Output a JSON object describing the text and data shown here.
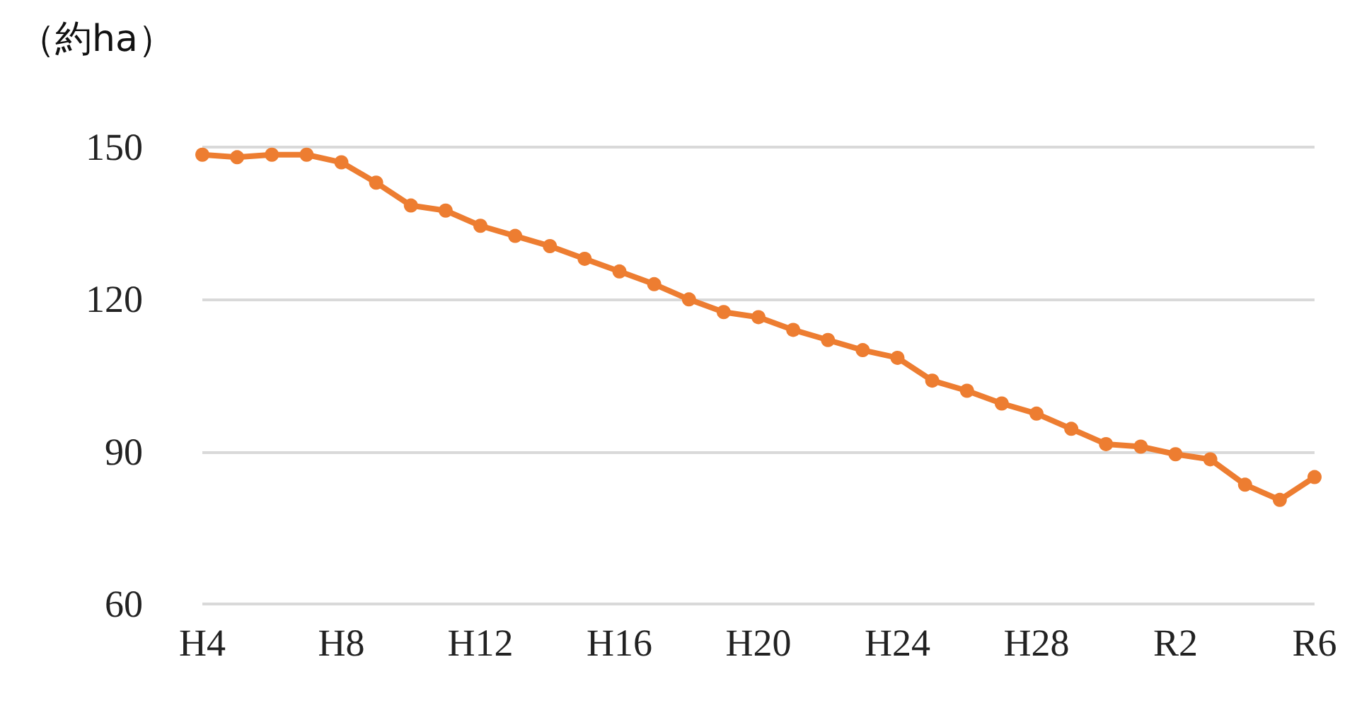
{
  "chart_data": {
    "type": "line",
    "ylabel": "（約ha）",
    "categories": [
      "H4",
      null,
      null,
      null,
      "H8",
      null,
      null,
      null,
      "H12",
      null,
      null,
      null,
      "H16",
      null,
      null,
      null,
      "H20",
      null,
      null,
      null,
      "H24",
      null,
      null,
      null,
      "H28",
      null,
      null,
      null,
      "R2",
      null,
      null,
      null,
      "R6"
    ],
    "series": [
      {
        "color": "#ed7d31",
        "values": [
          148.5,
          148,
          148.5,
          148.5,
          147,
          143,
          138.5,
          137.5,
          134.5,
          132.5,
          130.5,
          128,
          125.5,
          123,
          120,
          117.5,
          116.5,
          114,
          112,
          110,
          108.5,
          104,
          102,
          99.5,
          97.5,
          94.5,
          91.5,
          91,
          89.5,
          88.5,
          83.5,
          80.5,
          85
        ]
      }
    ],
    "ylim": [
      60,
      150
    ],
    "yticks": [
      60,
      90,
      120,
      150
    ],
    "grid": "y",
    "marker": "circle",
    "line_style": "solid"
  }
}
